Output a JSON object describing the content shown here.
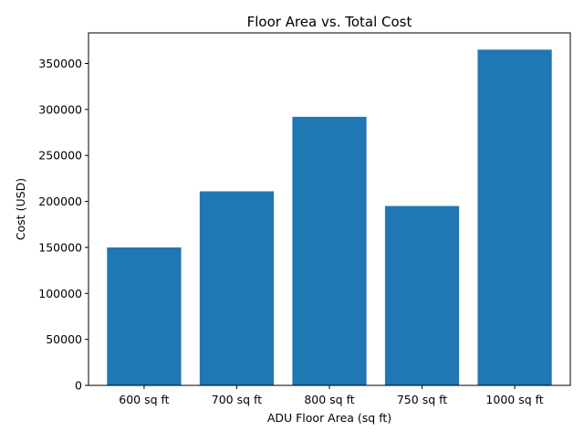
{
  "chart_data": {
    "type": "bar",
    "title": "Floor Area vs. Total Cost",
    "xlabel": "ADU Floor Area (sq ft)",
    "ylabel": "Cost (USD)",
    "categories": [
      "600 sq ft",
      "700 sq ft",
      "800 sq ft",
      "750 sq ft",
      "1000 sq ft"
    ],
    "values": [
      150000,
      211000,
      292000,
      195000,
      365000
    ],
    "ylim": [
      0,
      383250
    ],
    "yticks": [
      0,
      50000,
      100000,
      150000,
      200000,
      250000,
      300000,
      350000
    ],
    "ytick_labels": [
      "0",
      "50000",
      "100000",
      "150000",
      "200000",
      "250000",
      "300000",
      "350000"
    ],
    "bar_color": "#1f77b4",
    "grid": false,
    "legend": "none"
  }
}
